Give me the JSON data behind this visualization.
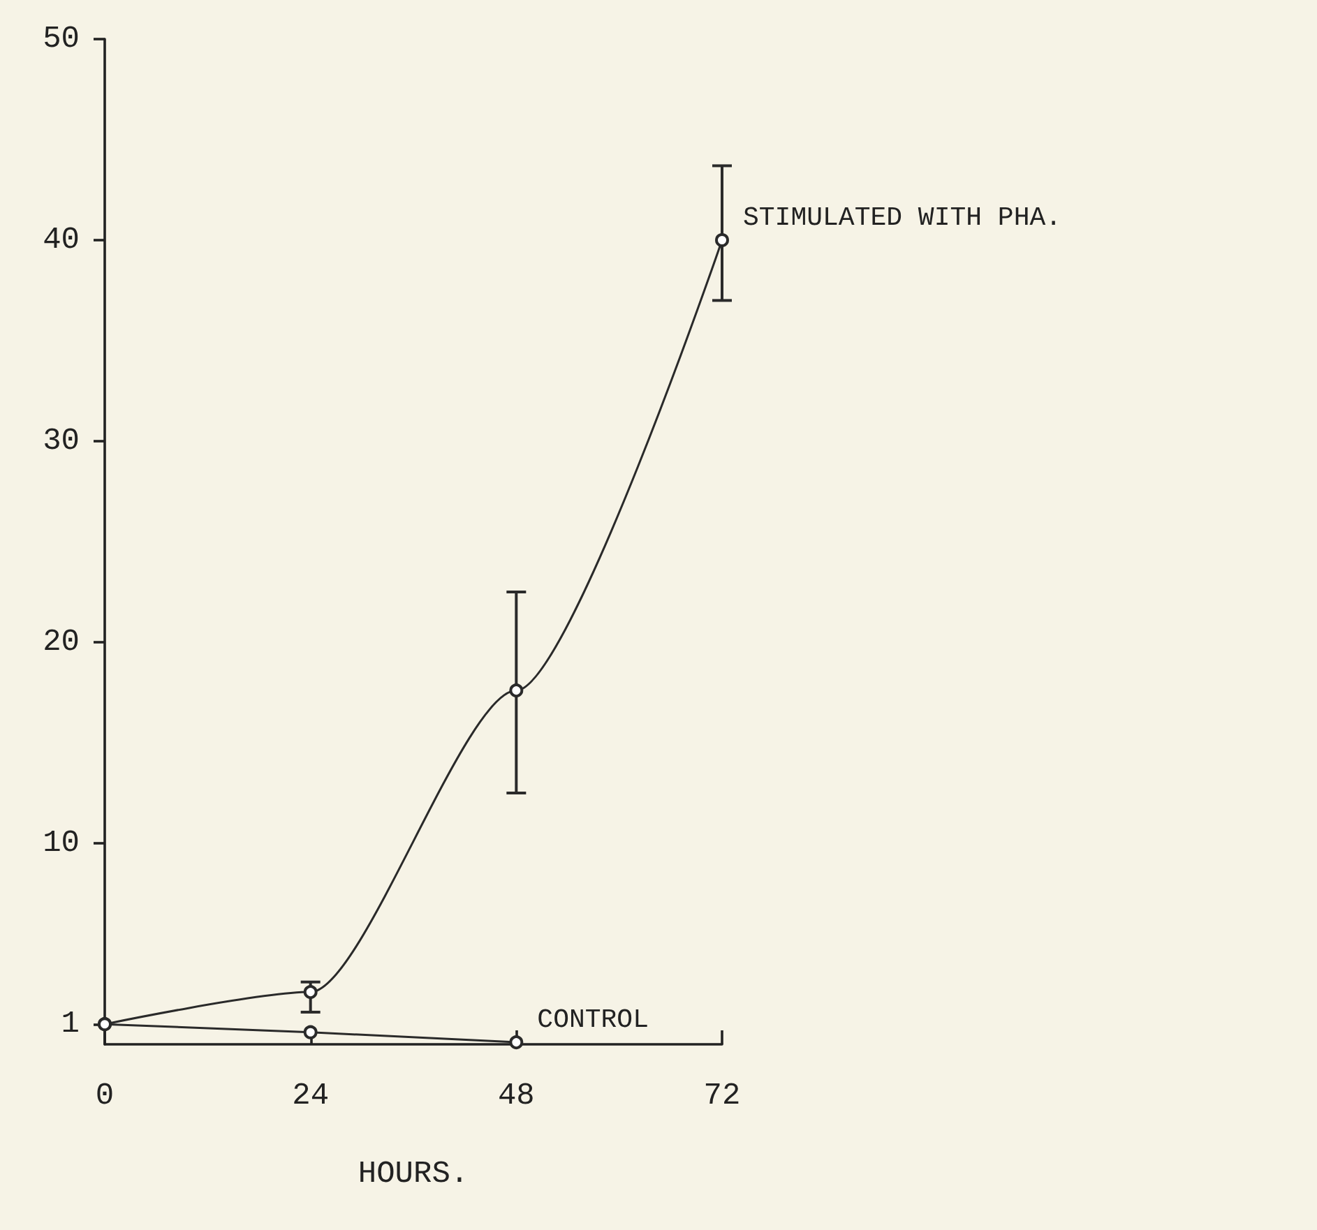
{
  "chart_data": {
    "type": "line",
    "xlabel": "HOURS.",
    "x": [
      0,
      24,
      48,
      72
    ],
    "xlim": [
      0,
      72
    ],
    "xticks": [
      0,
      24,
      48,
      72
    ],
    "ylim": [
      0,
      50
    ],
    "yticks": [
      1,
      10,
      20,
      30,
      40,
      50
    ],
    "grid": false,
    "legend": false,
    "marker": "circle",
    "line_style": "solid",
    "series": [
      {
        "name": "STIMULATED WITH PHA.",
        "color": "#2a2a2a",
        "values": [
          1,
          2.6,
          17.6,
          40
        ],
        "errors": [
          null,
          [
            1.6,
            3.1
          ],
          [
            12.5,
            22.5
          ],
          [
            37,
            43.7
          ]
        ]
      },
      {
        "name": "CONTROL",
        "color": "#2a2a2a",
        "x": [
          0,
          24,
          48
        ],
        "values": [
          1,
          0.6,
          0.1
        ]
      }
    ]
  }
}
